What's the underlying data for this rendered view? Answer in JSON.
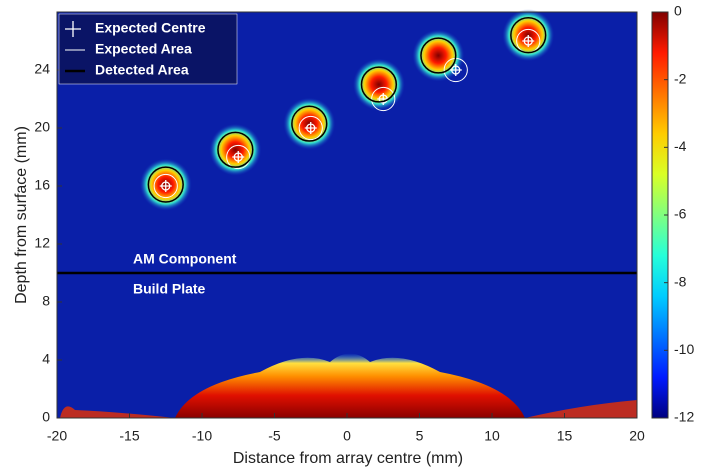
{
  "chart_data": {
    "type": "heatmap",
    "xlabel": "Distance from array centre (mm)",
    "ylabel": "Depth from surface (mm)",
    "xlim": [
      -20,
      20
    ],
    "xticks": [
      -20,
      -15,
      -10,
      -5,
      0,
      5,
      10,
      15,
      20
    ],
    "ylim": [
      0,
      28
    ],
    "yticks": [
      0,
      4,
      8,
      12,
      16,
      20,
      24
    ],
    "colormap": "jet",
    "colorbar": {
      "lim": [
        -12,
        0
      ],
      "ticks": [
        0,
        -2,
        -4,
        -6,
        -8,
        -10,
        -12
      ]
    },
    "boundary_y": 10,
    "annotations": [
      "AM Component",
      "Build Plate"
    ],
    "series": [
      {
        "name": "Expected Centre",
        "color": "#ffffff",
        "x": [
          -12.5,
          -7.5,
          -2.5,
          2.5,
          7.5,
          12.5
        ],
        "y": [
          16,
          18,
          20,
          22,
          24,
          26
        ]
      },
      {
        "name": "Expected Area",
        "color": "#ffffff",
        "radius": 0.8,
        "x": [
          -12.5,
          -7.5,
          -2.5,
          2.5,
          7.5,
          12.5
        ],
        "y": [
          16,
          18,
          20,
          22,
          24,
          26
        ]
      },
      {
        "name": "Detected Area",
        "color": "#000000",
        "radius": 1.2,
        "x": [
          -12.5,
          -7.7,
          -2.6,
          2.2,
          6.3,
          12.5
        ],
        "y": [
          16.1,
          18.5,
          20.3,
          23,
          25,
          26.4
        ]
      }
    ]
  }
}
